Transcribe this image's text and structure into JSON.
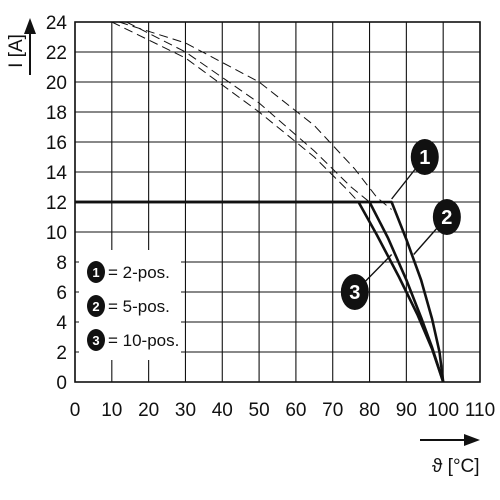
{
  "chart_data": {
    "type": "line",
    "ylabel": "I [A]",
    "xlabel": "ϑ [°C]",
    "xlim": [
      0,
      110
    ],
    "ylim": [
      0,
      24
    ],
    "x_ticks": [
      "0",
      "10",
      "20",
      "30",
      "40",
      "50",
      "60",
      "70",
      "80",
      "90",
      "100",
      "110"
    ],
    "y_ticks": [
      "0",
      "2",
      "4",
      "6",
      "8",
      "10",
      "12",
      "14",
      "16",
      "18",
      "20",
      "22",
      "24"
    ],
    "grid": true,
    "legend_position": "bottom-left",
    "legend": [
      {
        "marker": "1",
        "label": "= 2-pos."
      },
      {
        "marker": "2",
        "label": "= 5-pos."
      },
      {
        "marker": "3",
        "label": "= 10-pos."
      }
    ],
    "series": [
      {
        "marker": "1",
        "style": "solid",
        "points": [
          [
            0,
            12
          ],
          [
            86,
            12
          ],
          [
            90,
            9.5
          ],
          [
            94,
            6.8
          ],
          [
            97,
            4.2
          ],
          [
            99,
            2
          ],
          [
            100,
            0
          ]
        ]
      },
      {
        "marker": "2",
        "style": "solid",
        "points": [
          [
            0,
            12
          ],
          [
            80,
            12
          ],
          [
            85,
            9.6
          ],
          [
            90,
            6.8
          ],
          [
            94,
            4.3
          ],
          [
            97,
            2.3
          ],
          [
            100,
            0
          ]
        ]
      },
      {
        "marker": "3",
        "style": "solid",
        "points": [
          [
            0,
            12
          ],
          [
            77,
            12
          ],
          [
            82,
            9.8
          ],
          [
            88,
            7
          ],
          [
            93,
            4.5
          ],
          [
            97,
            2.2
          ],
          [
            100,
            0
          ]
        ]
      },
      {
        "marker": "1",
        "style": "dashed",
        "points": [
          [
            12,
            24
          ],
          [
            30,
            22.6
          ],
          [
            50,
            20
          ],
          [
            65,
            17.1
          ],
          [
            76,
            14.2
          ],
          [
            82,
            12.3
          ],
          [
            86,
            11.5
          ]
        ]
      },
      {
        "marker": "2",
        "style": "dashed",
        "points": [
          [
            14,
            24
          ],
          [
            30,
            22
          ],
          [
            50,
            18.6
          ],
          [
            65,
            15.4
          ],
          [
            75,
            13
          ],
          [
            80,
            12
          ]
        ]
      },
      {
        "marker": "3",
        "style": "dashed",
        "points": [
          [
            10,
            24
          ],
          [
            30,
            21.6
          ],
          [
            50,
            18
          ],
          [
            65,
            15
          ],
          [
            74,
            12.8
          ],
          [
            77,
            12
          ]
        ]
      }
    ],
    "badges": [
      {
        "marker": "1",
        "x": 95,
        "y": 15,
        "tip": [
          86,
          12.2
        ]
      },
      {
        "marker": "2",
        "x": 101,
        "y": 11,
        "tip": [
          92,
          8.5
        ]
      },
      {
        "marker": "3",
        "x": 76,
        "y": 6,
        "tip": [
          86,
          8.5
        ]
      }
    ]
  }
}
